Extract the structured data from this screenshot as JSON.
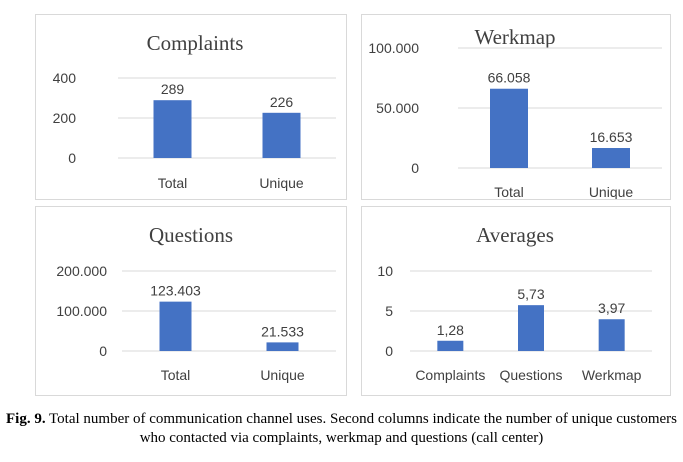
{
  "chart_data": [
    {
      "type": "bar",
      "title": "Complaints",
      "categories": [
        "Total",
        "Unique"
      ],
      "values": [
        289,
        226
      ],
      "value_labels": [
        "289",
        "226"
      ],
      "yticks": [
        "0",
        "200",
        "400"
      ],
      "ytick_values": [
        0,
        200,
        400
      ],
      "ylim": [
        0,
        400
      ],
      "grid": true,
      "bar_color": "#4472c4"
    },
    {
      "type": "bar",
      "title": "Werkmap",
      "categories": [
        "Total",
        "Unique"
      ],
      "values": [
        66058,
        16653
      ],
      "value_labels": [
        "66.058",
        "16.653"
      ],
      "yticks": [
        "0",
        "50.000",
        "100.000"
      ],
      "ytick_values": [
        0,
        50000,
        100000
      ],
      "ylim": [
        0,
        100000
      ],
      "grid": true,
      "bar_color": "#4472c4"
    },
    {
      "type": "bar",
      "title": "Questions",
      "categories": [
        "Total",
        "Unique"
      ],
      "values": [
        123403,
        21533
      ],
      "value_labels": [
        "123.403",
        "21.533"
      ],
      "yticks": [
        "0",
        "100.000",
        "200.000"
      ],
      "ytick_values": [
        0,
        100000,
        200000
      ],
      "ylim": [
        0,
        200000
      ],
      "grid": true,
      "bar_color": "#4472c4"
    },
    {
      "type": "bar",
      "title": "Averages",
      "categories": [
        "Complaints",
        "Questions",
        "Werkmap"
      ],
      "values": [
        1.28,
        5.73,
        3.97
      ],
      "value_labels": [
        "1,28",
        "5,73",
        "3,97"
      ],
      "yticks": [
        "0",
        "5",
        "10"
      ],
      "ytick_values": [
        0,
        5,
        10
      ],
      "ylim": [
        0,
        10
      ],
      "grid": true,
      "bar_color": "#4472c4"
    }
  ],
  "caption": {
    "label": "Fig. 9.",
    "text": " Total number of communication channel uses. Second columns indicate the number of unique customers who contacted via complaints, werkmap and questions (call center)"
  }
}
